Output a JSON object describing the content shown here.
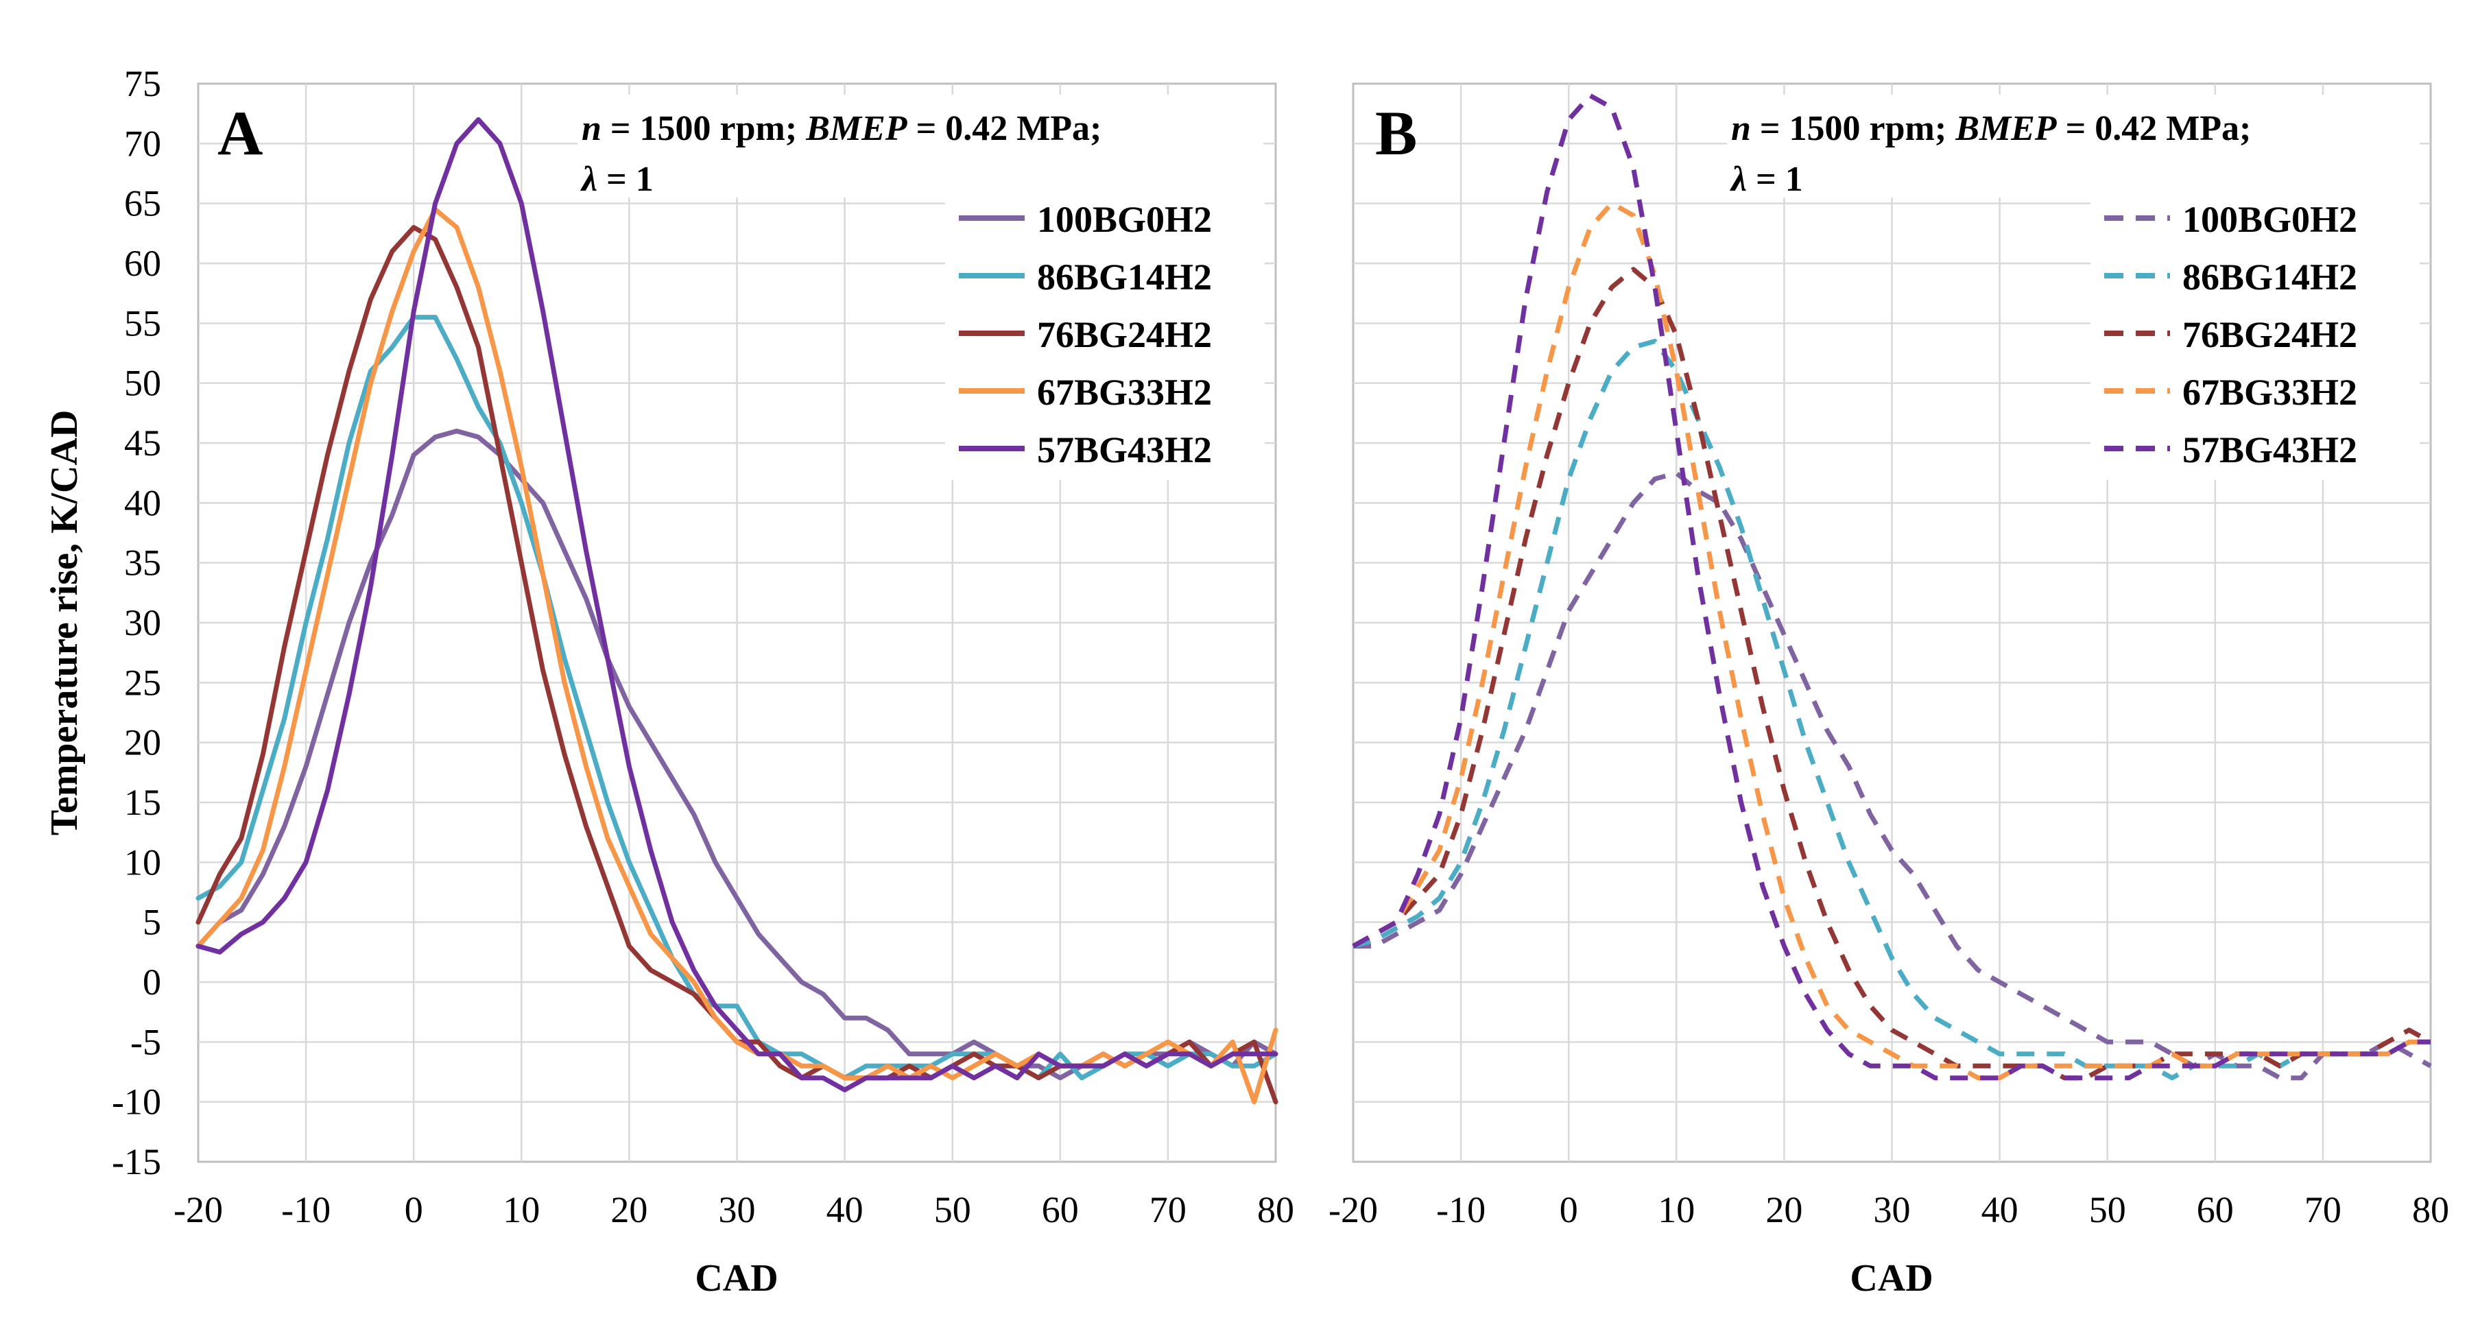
{
  "figure": {
    "y_axis_label": "Temperature rise, K/CAD"
  },
  "chart_data": [
    {
      "type": "line",
      "panel": "A",
      "line_style": "solid",
      "condition": {
        "n_symbol": "n",
        "n_value": " = 1500 rpm; ",
        "bmep_symbol": "BMEP",
        "bmep_value": " = 0.42 MPa;",
        "lambda_symbol": "λ",
        "lambda_value": " = 1"
      },
      "xlabel": "CAD",
      "ylabel": "Temperature rise, K/CAD",
      "xlim": [
        -20,
        80
      ],
      "ylim": [
        -15,
        75
      ],
      "xticks": [
        -20,
        -10,
        0,
        10,
        20,
        30,
        40,
        50,
        60,
        70,
        80
      ],
      "yticks": [
        -15,
        -10,
        -5,
        0,
        5,
        10,
        15,
        20,
        25,
        30,
        35,
        40,
        45,
        50,
        55,
        60,
        65,
        70,
        75
      ],
      "grid": true,
      "legend_position": "top-right",
      "series": [
        {
          "name": "100BG0H2",
          "color": "#8064a2",
          "x": [
            -20,
            -18,
            -16,
            -14,
            -12,
            -10,
            -8,
            -6,
            -4,
            -2,
            0,
            2,
            4,
            6,
            8,
            10,
            12,
            14,
            16,
            18,
            20,
            22,
            24,
            26,
            28,
            30,
            32,
            34,
            36,
            38,
            40,
            42,
            44,
            46,
            48,
            50,
            52,
            54,
            56,
            58,
            60,
            62,
            64,
            66,
            68,
            70,
            72,
            74,
            76,
            78,
            80
          ],
          "y": [
            3,
            5,
            6,
            9,
            13,
            18,
            24,
            30,
            35,
            39,
            44,
            45.5,
            46,
            45.5,
            44,
            42,
            40,
            36,
            32,
            27,
            23,
            20,
            17,
            14,
            10,
            7,
            4,
            2,
            0,
            -1,
            -3,
            -3,
            -4,
            -6,
            -6,
            -6,
            -5,
            -6,
            -7,
            -7,
            -8,
            -7,
            -6,
            -7,
            -6,
            -6,
            -5,
            -6,
            -7,
            -5,
            -6
          ]
        },
        {
          "name": "86BG14H2",
          "color": "#4bacc6",
          "x": [
            -20,
            -18,
            -16,
            -14,
            -12,
            -10,
            -8,
            -6,
            -4,
            -2,
            0,
            2,
            4,
            6,
            8,
            10,
            12,
            14,
            16,
            18,
            20,
            22,
            24,
            26,
            28,
            30,
            32,
            34,
            36,
            38,
            40,
            42,
            44,
            46,
            48,
            50,
            52,
            54,
            56,
            58,
            60,
            62,
            64,
            66,
            68,
            70,
            72,
            74,
            76,
            78,
            80
          ],
          "y": [
            7,
            8,
            10,
            16,
            22,
            30,
            37,
            45,
            51,
            53,
            55.5,
            55.5,
            52,
            48,
            45,
            40,
            34,
            27,
            21,
            15,
            10,
            6,
            2,
            -1,
            -2,
            -2,
            -5,
            -6,
            -6,
            -7,
            -8,
            -7,
            -7,
            -7,
            -7,
            -6,
            -6,
            -6,
            -7,
            -8,
            -6,
            -8,
            -7,
            -6,
            -6,
            -7,
            -6,
            -6,
            -7,
            -7,
            -6
          ]
        },
        {
          "name": "76BG24H2",
          "color": "#943634",
          "x": [
            -20,
            -18,
            -16,
            -14,
            -12,
            -10,
            -8,
            -6,
            -4,
            -2,
            0,
            2,
            4,
            6,
            8,
            10,
            12,
            14,
            16,
            18,
            20,
            22,
            24,
            26,
            28,
            30,
            32,
            34,
            36,
            38,
            40,
            42,
            44,
            46,
            48,
            50,
            52,
            54,
            56,
            58,
            60,
            62,
            64,
            66,
            68,
            70,
            72,
            74,
            76,
            78,
            80
          ],
          "y": [
            5,
            9,
            12,
            19,
            28,
            36,
            44,
            51,
            57,
            61,
            63,
            62,
            58,
            53,
            44,
            35,
            26,
            19,
            13,
            8,
            3,
            1,
            0,
            -1,
            -3,
            -5,
            -5,
            -7,
            -8,
            -7,
            -8,
            -8,
            -8,
            -7,
            -8,
            -7,
            -6,
            -7,
            -7,
            -8,
            -7,
            -7,
            -7,
            -6,
            -7,
            -6,
            -5,
            -7,
            -6,
            -5,
            -10
          ]
        },
        {
          "name": "67BG33H2",
          "color": "#f79646",
          "x": [
            -20,
            -18,
            -16,
            -14,
            -12,
            -10,
            -8,
            -6,
            -4,
            -2,
            0,
            2,
            4,
            6,
            8,
            10,
            12,
            14,
            16,
            18,
            20,
            22,
            24,
            26,
            28,
            30,
            32,
            34,
            36,
            38,
            40,
            42,
            44,
            46,
            48,
            50,
            52,
            54,
            56,
            58,
            60,
            62,
            64,
            66,
            68,
            70,
            72,
            74,
            76,
            78,
            80
          ],
          "y": [
            3,
            5,
            7,
            11,
            18,
            26,
            34,
            42,
            50,
            56,
            61,
            64.5,
            63,
            58,
            51,
            43,
            34,
            25,
            18,
            12,
            8,
            4,
            2,
            0,
            -3,
            -5,
            -6,
            -6,
            -7,
            -7,
            -8,
            -8,
            -7,
            -8,
            -7,
            -8,
            -7,
            -6,
            -7,
            -6,
            -7,
            -7,
            -6,
            -7,
            -6,
            -5,
            -6,
            -7,
            -5,
            -10,
            -4
          ]
        },
        {
          "name": "57BG43H2",
          "color": "#7030a0",
          "x": [
            -20,
            -18,
            -16,
            -14,
            -12,
            -10,
            -8,
            -6,
            -4,
            -2,
            0,
            2,
            4,
            6,
            8,
            10,
            12,
            14,
            16,
            18,
            20,
            22,
            24,
            26,
            28,
            30,
            32,
            34,
            36,
            38,
            40,
            42,
            44,
            46,
            48,
            50,
            52,
            54,
            56,
            58,
            60,
            62,
            64,
            66,
            68,
            70,
            72,
            74,
            76,
            78,
            80
          ],
          "y": [
            3,
            2.5,
            4,
            5,
            7,
            10,
            16,
            24,
            33,
            44,
            56,
            65,
            70,
            72,
            70,
            65,
            56,
            46,
            36,
            27,
            18,
            11,
            5,
            1,
            -2,
            -4,
            -6,
            -6,
            -8,
            -8,
            -9,
            -8,
            -8,
            -8,
            -8,
            -7,
            -8,
            -7,
            -8,
            -6,
            -7,
            -7,
            -7,
            -6,
            -7,
            -6,
            -6,
            -7,
            -6,
            -6,
            -6
          ]
        }
      ]
    },
    {
      "type": "line",
      "panel": "B",
      "line_style": "dashed",
      "condition": {
        "n_symbol": "n",
        "n_value": " = 1500 rpm; ",
        "bmep_symbol": "BMEP",
        "bmep_value": " = 0.42 MPa;",
        "lambda_symbol": "λ",
        "lambda_value": " = 1"
      },
      "xlabel": "CAD",
      "xlim": [
        -20,
        80
      ],
      "ylim": [
        -15,
        75
      ],
      "xticks": [
        -20,
        -10,
        0,
        10,
        20,
        30,
        40,
        50,
        60,
        70,
        80
      ],
      "grid": true,
      "legend_position": "top-right",
      "series": [
        {
          "name": "100BG0H2",
          "color": "#8064a2",
          "x": [
            -20,
            -18,
            -16,
            -14,
            -12,
            -10,
            -8,
            -6,
            -4,
            -2,
            0,
            2,
            4,
            6,
            8,
            10,
            12,
            14,
            16,
            18,
            20,
            22,
            24,
            26,
            28,
            30,
            32,
            34,
            36,
            38,
            40,
            42,
            44,
            46,
            48,
            50,
            52,
            54,
            56,
            58,
            60,
            62,
            64,
            66,
            68,
            70,
            72,
            74,
            76,
            78,
            80
          ],
          "y": [
            3,
            3,
            4,
            5,
            6,
            9,
            13,
            17,
            21,
            26,
            31,
            34,
            37,
            40,
            42,
            42.5,
            41,
            40,
            37,
            33,
            29,
            25,
            21,
            18,
            14,
            11,
            9,
            6,
            3,
            1,
            0,
            -1,
            -2,
            -3,
            -4,
            -5,
            -5,
            -5,
            -6,
            -7,
            -6,
            -7,
            -7,
            -8,
            -8,
            -6,
            -6,
            -6,
            -5,
            -6,
            -7
          ]
        },
        {
          "name": "86BG14H2",
          "color": "#4bacc6",
          "x": [
            -20,
            -18,
            -16,
            -14,
            -12,
            -10,
            -8,
            -6,
            -4,
            -2,
            0,
            2,
            4,
            6,
            8,
            10,
            12,
            14,
            16,
            18,
            20,
            22,
            24,
            26,
            28,
            30,
            32,
            34,
            36,
            38,
            40,
            42,
            44,
            46,
            48,
            50,
            52,
            54,
            56,
            58,
            60,
            62,
            64,
            66,
            68,
            70,
            72,
            74,
            76,
            78,
            80
          ],
          "y": [
            3,
            3.5,
            4.5,
            5.5,
            7,
            10,
            15,
            21,
            28,
            35,
            42,
            47,
            51,
            53,
            53.5,
            51,
            47,
            43,
            38,
            32,
            26,
            20,
            15,
            10,
            6,
            2,
            -1,
            -3,
            -4,
            -5,
            -6,
            -6,
            -6,
            -6,
            -7,
            -7,
            -7,
            -7,
            -8,
            -7,
            -7,
            -7,
            -6,
            -7,
            -6,
            -6,
            -6,
            -6,
            -6,
            -5,
            -5
          ]
        },
        {
          "name": "76BG24H2",
          "color": "#943634",
          "x": [
            -20,
            -18,
            -16,
            -14,
            -12,
            -10,
            -8,
            -6,
            -4,
            -2,
            0,
            2,
            4,
            6,
            8,
            10,
            12,
            14,
            16,
            18,
            20,
            22,
            24,
            26,
            28,
            30,
            32,
            34,
            36,
            38,
            40,
            42,
            44,
            46,
            48,
            50,
            52,
            54,
            56,
            58,
            60,
            62,
            64,
            66,
            68,
            70,
            72,
            74,
            76,
            78,
            80
          ],
          "y": [
            3,
            4,
            5,
            7,
            9,
            14,
            21,
            29,
            37,
            44,
            50,
            55,
            58,
            59.5,
            58,
            54,
            47,
            39,
            31,
            23,
            16,
            10,
            5,
            1,
            -2,
            -4,
            -5,
            -6,
            -7,
            -7,
            -7,
            -7,
            -7,
            -8,
            -8,
            -7,
            -7,
            -7,
            -6,
            -6,
            -6,
            -6,
            -6,
            -7,
            -6,
            -6,
            -6,
            -6,
            -5,
            -4,
            -5
          ]
        },
        {
          "name": "67BG33H2",
          "color": "#f79646",
          "x": [
            -20,
            -18,
            -16,
            -14,
            -12,
            -10,
            -8,
            -6,
            -4,
            -2,
            0,
            2,
            4,
            6,
            8,
            10,
            12,
            14,
            16,
            18,
            20,
            22,
            24,
            26,
            28,
            30,
            32,
            34,
            36,
            38,
            40,
            42,
            44,
            46,
            48,
            50,
            52,
            54,
            56,
            58,
            60,
            62,
            64,
            66,
            68,
            70,
            72,
            74,
            76,
            78,
            80
          ],
          "y": [
            3,
            4,
            5,
            8,
            11,
            17,
            25,
            34,
            43,
            51,
            58,
            63,
            65,
            64,
            59,
            51,
            41,
            31,
            22,
            14,
            7,
            2,
            -2,
            -4,
            -5,
            -6,
            -7,
            -7,
            -7,
            -8,
            -8,
            -7,
            -7,
            -7,
            -7,
            -7,
            -7,
            -7,
            -6,
            -7,
            -7,
            -6,
            -6,
            -6,
            -6,
            -6,
            -6,
            -6,
            -6,
            -5,
            -5
          ]
        },
        {
          "name": "57BG43H2",
          "color": "#7030a0",
          "x": [
            -20,
            -18,
            -16,
            -14,
            -12,
            -10,
            -8,
            -6,
            -4,
            -2,
            0,
            2,
            4,
            6,
            8,
            10,
            12,
            14,
            16,
            18,
            20,
            22,
            24,
            26,
            28,
            30,
            32,
            34,
            36,
            38,
            40,
            42,
            44,
            46,
            48,
            50,
            52,
            54,
            56,
            58,
            60,
            62,
            64,
            66,
            68,
            70,
            72,
            74,
            76,
            78,
            80
          ],
          "y": [
            3,
            4,
            5,
            9,
            14,
            22,
            33,
            45,
            57,
            66,
            72,
            74,
            73,
            68,
            58,
            46,
            34,
            24,
            15,
            8,
            3,
            -1,
            -4,
            -6,
            -7,
            -7,
            -7,
            -8,
            -8,
            -8,
            -8,
            -7,
            -7,
            -8,
            -8,
            -8,
            -8,
            -7,
            -7,
            -7,
            -7,
            -6,
            -6,
            -6,
            -6,
            -6,
            -6,
            -6,
            -6,
            -5,
            -5
          ]
        }
      ]
    }
  ]
}
